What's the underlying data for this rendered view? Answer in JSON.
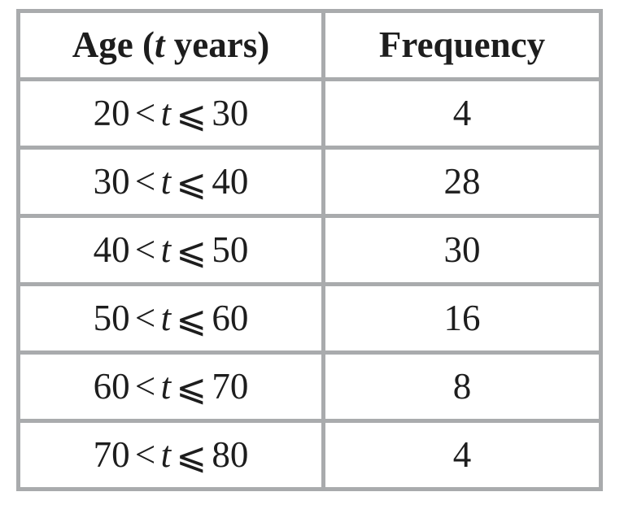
{
  "header": {
    "age": {
      "prefix": "Age (",
      "var": "t",
      "suffix": " years)"
    },
    "frequency": "Frequency"
  },
  "rows": [
    {
      "lower": "20",
      "lt": "<",
      "var": "t",
      "leq": "⩽",
      "upper": "30",
      "frequency": "4"
    },
    {
      "lower": "30",
      "lt": "<",
      "var": "t",
      "leq": "⩽",
      "upper": "40",
      "frequency": "28"
    },
    {
      "lower": "40",
      "lt": "<",
      "var": "t",
      "leq": "⩽",
      "upper": "50",
      "frequency": "30"
    },
    {
      "lower": "50",
      "lt": "<",
      "var": "t",
      "leq": "⩽",
      "upper": "60",
      "frequency": "16"
    },
    {
      "lower": "60",
      "lt": "<",
      "var": "t",
      "leq": "⩽",
      "upper": "70",
      "frequency": "8"
    },
    {
      "lower": "70",
      "lt": "<",
      "var": "t",
      "leq": "⩽",
      "upper": "80",
      "frequency": "4"
    }
  ],
  "colors": {
    "border": "#a9abad",
    "text": "#1d1d1d",
    "background": "#ffffff"
  },
  "chart_data": {
    "type": "table",
    "title": "",
    "columns": [
      "Age (t years)",
      "Frequency"
    ],
    "categories": [
      "20 < t ⩽ 30",
      "30 < t ⩽ 40",
      "40 < t ⩽ 50",
      "50 < t ⩽ 60",
      "60 < t ⩽ 70",
      "70 < t ⩽ 80"
    ],
    "values": [
      4,
      28,
      30,
      16,
      8,
      4
    ]
  }
}
